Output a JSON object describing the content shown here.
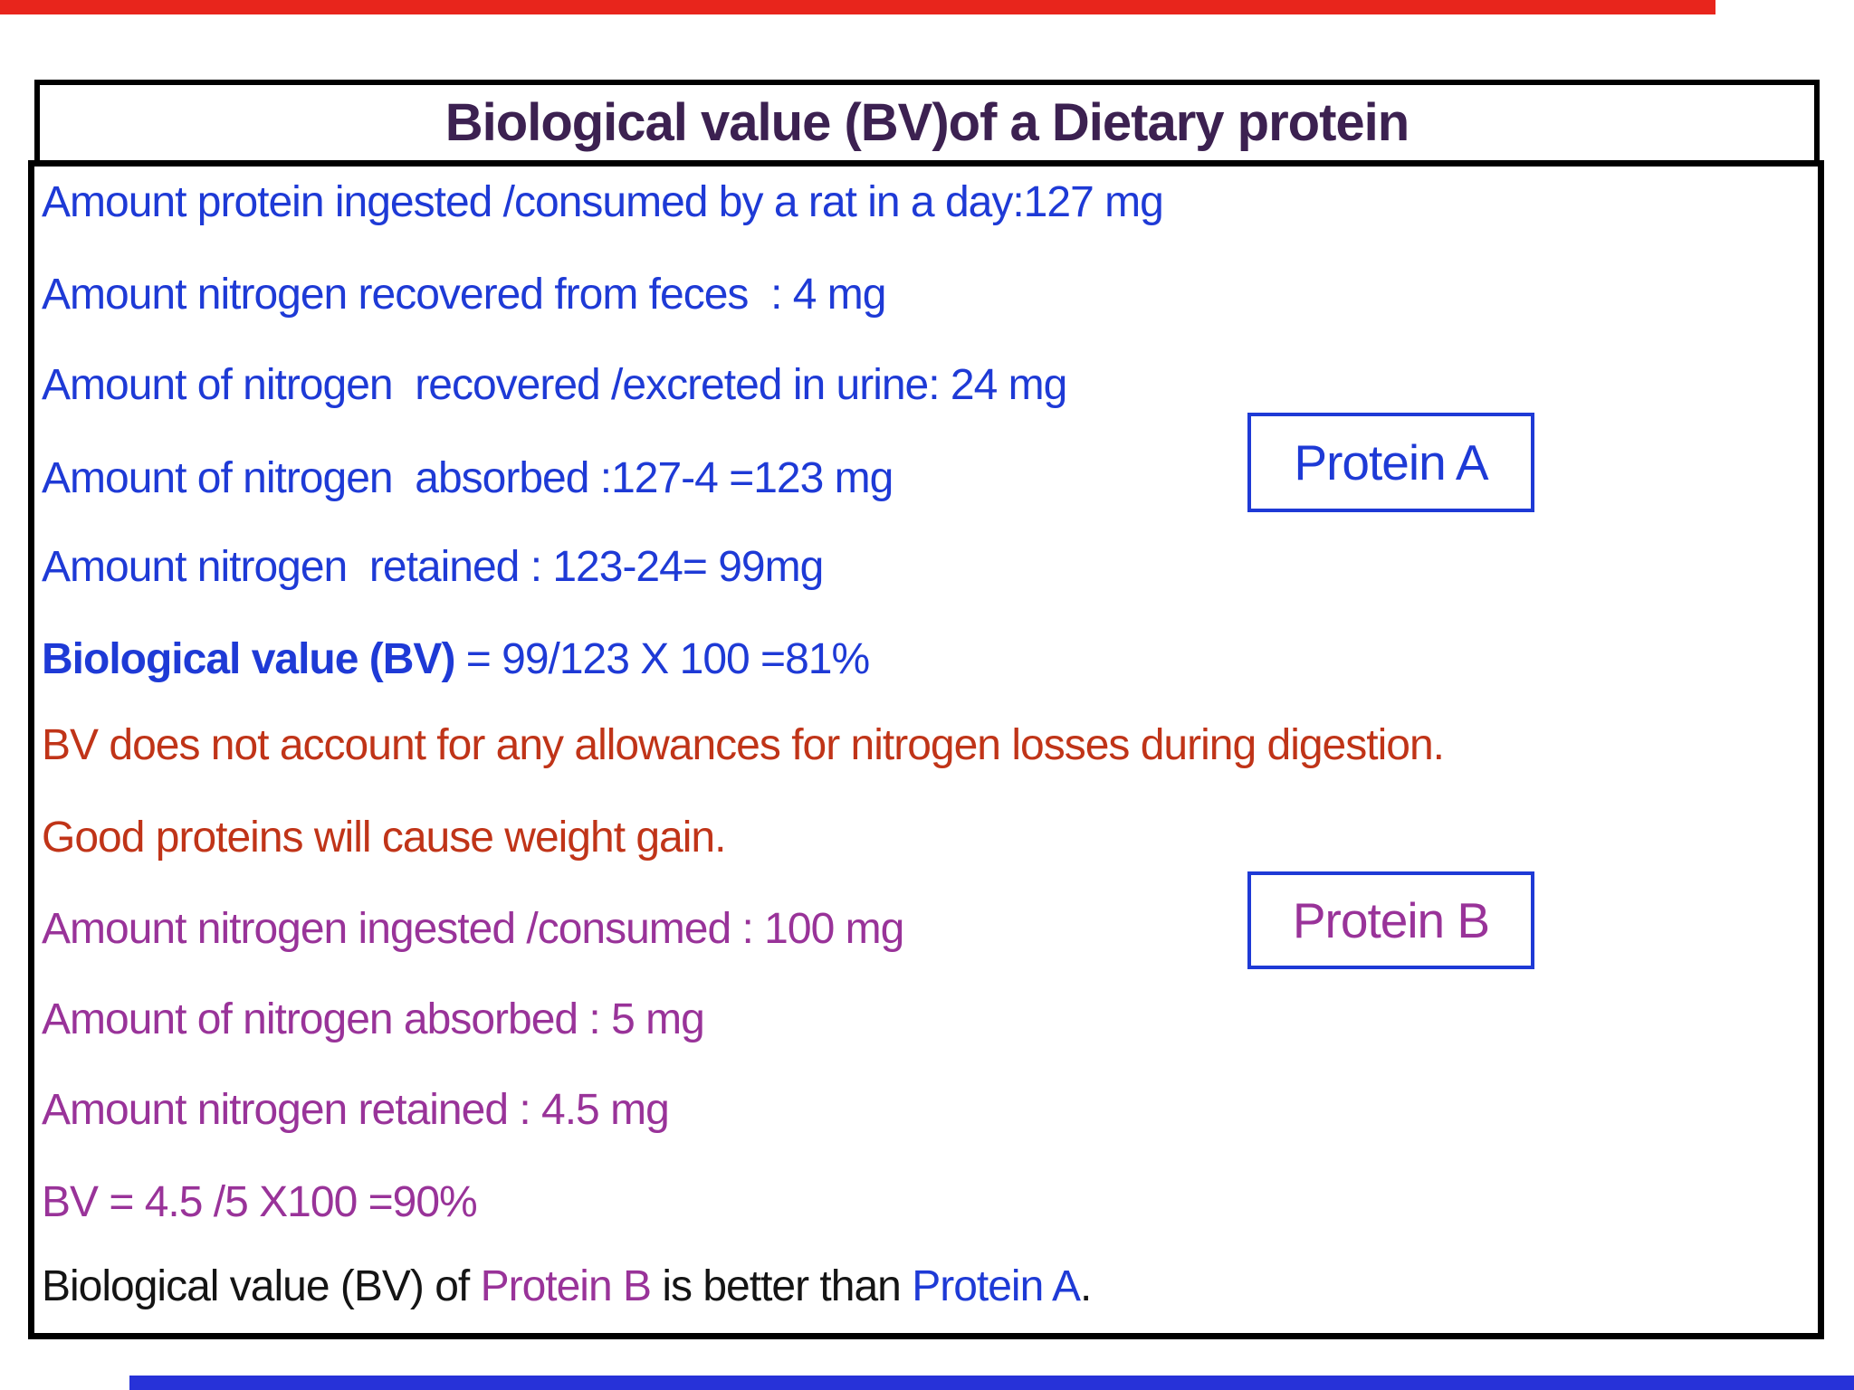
{
  "title": {
    "text": "Biological value (BV)of a Dietary protein"
  },
  "colors": {
    "title": "#3c2151",
    "blue": "#1e3ad6",
    "red": "#c03418",
    "purple": "#993399",
    "black": "#141414",
    "border_black": "#000000",
    "protein_box_border": "#1e3ad6",
    "top_bar": "#e8251c",
    "bottom_bar": "#2732d8"
  },
  "protein_boxes": {
    "a_label": "Protein A",
    "b_label": "Protein B"
  },
  "content_lines": [
    {
      "segments": [
        {
          "text": "Amount protein ingested /consumed by a rat in a day:127 mg",
          "color": "blue",
          "bold": false
        }
      ]
    },
    {
      "segments": [
        {
          "text": "Amount nitrogen recovered from feces  : 4 mg",
          "color": "blue",
          "bold": false
        }
      ]
    },
    {
      "segments": [
        {
          "text": "Amount of nitrogen  recovered /excreted in urine: 24 mg",
          "color": "blue",
          "bold": false
        }
      ]
    },
    {
      "segments": [
        {
          "text": "Amount of nitrogen  absorbed :127-4 =123 mg",
          "color": "blue",
          "bold": false
        }
      ]
    },
    {
      "segments": [
        {
          "text": "Amount nitrogen  retained : 123-24= 99mg",
          "color": "blue",
          "bold": false
        }
      ]
    },
    {
      "segments": [
        {
          "text": "Biological value (BV)",
          "color": "blue",
          "bold": true
        },
        {
          "text": " = 99/123 X 100 =81%",
          "color": "blue",
          "bold": false
        }
      ]
    },
    {
      "segments": [
        {
          "text": "BV does not account for any allowances for nitrogen losses during digestion.",
          "color": "red",
          "bold": false
        }
      ]
    },
    {
      "segments": [
        {
          "text": "Good proteins will cause weight gain.",
          "color": "red",
          "bold": false
        }
      ]
    },
    {
      "segments": [
        {
          "text": "Amount nitrogen ingested /consumed : 100 mg",
          "color": "purple",
          "bold": false
        }
      ]
    },
    {
      "segments": [
        {
          "text": "Amount of nitrogen absorbed : 5 mg",
          "color": "purple",
          "bold": false
        }
      ]
    },
    {
      "segments": [
        {
          "text": "Amount nitrogen retained : 4.5 mg",
          "color": "purple",
          "bold": false
        }
      ]
    },
    {
      "segments": [
        {
          "text": "BV = 4.5 /5 X100 =90%",
          "color": "purple",
          "bold": false
        }
      ]
    },
    {
      "segments": [
        {
          "text": "Biological value (BV) of ",
          "color": "black",
          "bold": false
        },
        {
          "text": "Protein B",
          "color": "purple",
          "bold": false
        },
        {
          "text": " is better than ",
          "color": "black",
          "bold": false
        },
        {
          "text": "Protein A",
          "color": "blue",
          "bold": false
        },
        {
          "text": ".",
          "color": "black",
          "bold": false
        }
      ]
    }
  ]
}
